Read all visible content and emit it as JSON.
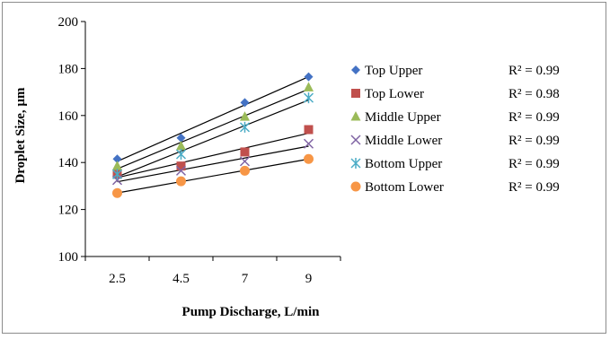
{
  "chart_data": {
    "type": "scatter",
    "title": "",
    "xlabel": "Pump Discharge, L/min",
    "ylabel": "Droplet Size, µm",
    "categories": [
      "2.5",
      "4.5",
      "7",
      "9"
    ],
    "ylim": [
      100,
      200
    ],
    "yticks": [
      100,
      120,
      140,
      160,
      180,
      200
    ],
    "grid": false,
    "legend_position": "right",
    "trendlines": "linear",
    "series": [
      {
        "name": "Top Upper",
        "marker": "diamond",
        "color": "#4472C4",
        "values": [
          141.5,
          150.5,
          165.5,
          176.5
        ],
        "r2_label": "R² = 0.99"
      },
      {
        "name": "Top Lower",
        "marker": "square",
        "color": "#C0504D",
        "values": [
          135,
          138.5,
          144.5,
          154
        ],
        "r2_label": "R² = 0.98"
      },
      {
        "name": "Middle Upper",
        "marker": "triangle",
        "color": "#9BBB59",
        "values": [
          138.5,
          147,
          159.5,
          172
        ],
        "r2_label": "R² = 0.99"
      },
      {
        "name": "Middle Lower",
        "marker": "x",
        "color": "#7F63A3",
        "values": [
          132.5,
          136.5,
          140.5,
          148
        ],
        "r2_label": "R² = 0.99"
      },
      {
        "name": "Bottom Upper",
        "marker": "star",
        "color": "#4BACC6",
        "values": [
          135,
          143.5,
          155,
          167.5
        ],
        "r2_label": "R² = 0.99"
      },
      {
        "name": "Bottom Lower",
        "marker": "circle",
        "color": "#F79646",
        "values": [
          127,
          132,
          136.5,
          141.5
        ],
        "r2_label": "R² = 0.99"
      }
    ]
  }
}
